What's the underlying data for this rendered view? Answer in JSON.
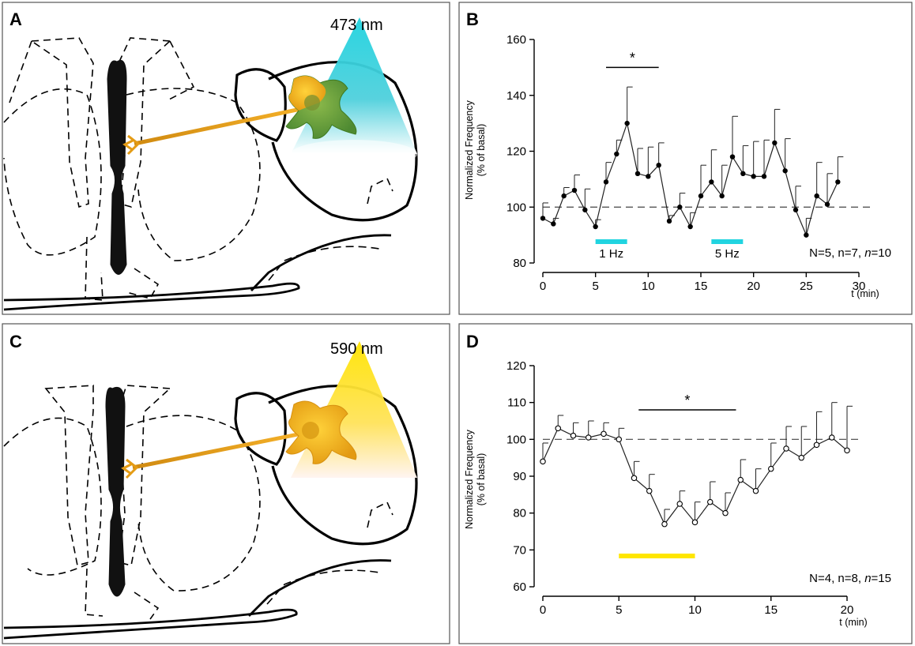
{
  "colors": {
    "blue_light": "#21d4e0",
    "yellow_light": "#ffe600",
    "neuron_orange": "#f2a516",
    "neuron_green": "#5a9a3a",
    "axis": "#000000"
  },
  "panels": {
    "A": {
      "letter": "A",
      "wavelength": "473 nm",
      "light_color": "blue"
    },
    "B": {
      "letter": "B"
    },
    "C": {
      "letter": "C",
      "wavelength": "590 nm",
      "light_color": "yellow"
    },
    "D": {
      "letter": "D"
    }
  },
  "chart_data": [
    {
      "panel": "B",
      "type": "line",
      "ylabel_line1": "Normalized Frequency",
      "ylabel_line2": "(% of basal)",
      "xlabel": "t (min)",
      "xlim": [
        0,
        30
      ],
      "ylim": [
        80,
        160
      ],
      "xticks": [
        0,
        5,
        10,
        15,
        20,
        25,
        30
      ],
      "yticks": [
        80,
        100,
        120,
        140,
        160
      ],
      "baseline": 100,
      "marker": "filled",
      "series": [
        {
          "name": "mean",
          "x": [
            0,
            1,
            2,
            3,
            4,
            5,
            6,
            7,
            8,
            9,
            10,
            11,
            12,
            13,
            14,
            15,
            16,
            17,
            18,
            19,
            20,
            21,
            22,
            23,
            24,
            25,
            26,
            27,
            28
          ],
          "y": [
            96,
            94,
            104,
            106,
            99,
            93,
            109,
            119,
            130,
            112,
            111,
            115,
            95,
            100,
            93,
            104,
            109,
            104,
            118,
            112,
            111,
            111,
            123,
            113,
            99,
            90,
            104,
            101,
            109
          ],
          "error_upper": [
            101.5,
            96,
            107,
            111.5,
            106.5,
            95.5,
            116,
            124,
            143,
            121,
            121.5,
            123,
            97,
            105,
            98,
            115,
            120.5,
            115,
            132.5,
            122,
            123.5,
            124,
            135,
            124.5,
            107.5,
            96,
            116,
            112,
            118
          ]
        }
      ],
      "stim_bars": [
        {
          "label": "1 Hz",
          "x0": 5,
          "x1": 8,
          "color": "blue_light"
        },
        {
          "label": "5 Hz",
          "x0": 16,
          "x1": 19,
          "color": "blue_light"
        }
      ],
      "significance": {
        "label": "*",
        "x0": 6,
        "x1": 11,
        "y": 150
      },
      "annotation": "N=5, n=7, n=10"
    },
    {
      "panel": "D",
      "type": "line",
      "ylabel_line1": "Normalized Frequency",
      "ylabel_line2": "(% of basal)",
      "xlabel": "t (min)",
      "xlim": [
        0,
        20
      ],
      "ylim": [
        60,
        120
      ],
      "xticks": [
        0,
        5,
        10,
        15,
        20
      ],
      "yticks": [
        60,
        70,
        80,
        90,
        100,
        110,
        120
      ],
      "baseline": 100,
      "marker": "open",
      "series": [
        {
          "name": "mean",
          "x": [
            0,
            1,
            2,
            3,
            4,
            5,
            6,
            7,
            8,
            9,
            10,
            11,
            12,
            13,
            14,
            15,
            16,
            17,
            18,
            19,
            20
          ],
          "y": [
            94,
            103,
            101,
            100.5,
            101.5,
            100,
            89.5,
            86,
            77,
            82.5,
            77.5,
            83,
            80,
            89,
            86,
            92,
            97.5,
            95,
            98.5,
            100.5,
            97
          ],
          "error_upper": [
            99,
            106.5,
            104.5,
            105,
            104.5,
            103,
            94,
            90.5,
            81,
            86,
            83,
            88.5,
            85.5,
            94.5,
            92,
            99,
            103.5,
            103.5,
            107.5,
            110,
            109
          ]
        }
      ],
      "stim_bars": [
        {
          "label": "",
          "x0": 5,
          "x1": 10,
          "color": "yellow_light"
        }
      ],
      "significance": {
        "label": "*",
        "x0": 6.3,
        "x1": 12.7,
        "y": 108
      },
      "annotation": "N=4, n=8, n=15"
    }
  ]
}
